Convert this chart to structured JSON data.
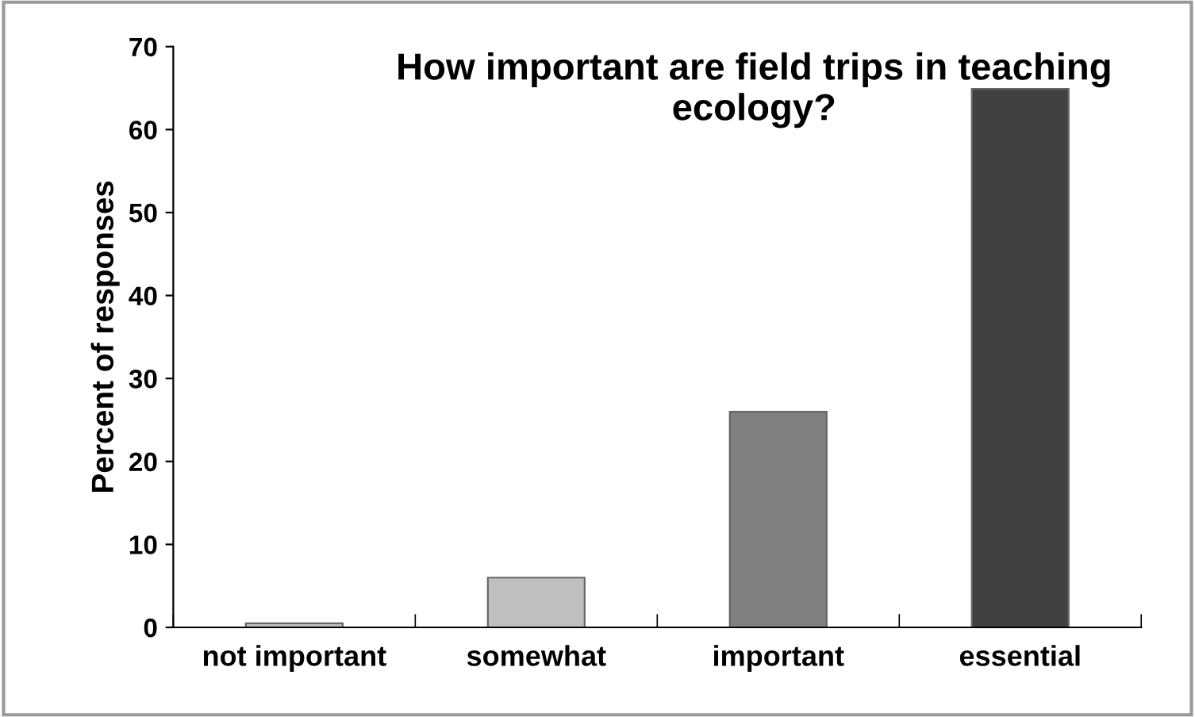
{
  "chart_data": {
    "type": "bar",
    "title": "How important are field trips in teaching ecology?",
    "ylabel": "Percent of responses",
    "categories": [
      "not important",
      "somewhat",
      "important",
      "essential"
    ],
    "values": [
      0.5,
      6,
      26,
      64.9
    ],
    "colors": [
      "#bfbfbf",
      "#bfbfbf",
      "#808080",
      "#404040"
    ],
    "ylim": [
      0,
      70
    ],
    "yticks": [
      0,
      10,
      20,
      30,
      40,
      50,
      60,
      70
    ],
    "grid": false,
    "legend": false
  }
}
